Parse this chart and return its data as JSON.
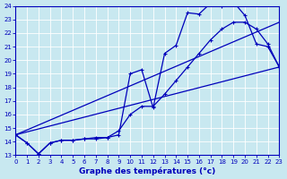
{
  "xlabel": "Graphe des températures (°c)",
  "bg_color": "#c8e8f0",
  "grid_color": "#aaccdd",
  "line_color": "#0000bb",
  "xmin": 0,
  "xmax": 23,
  "ymin": 13,
  "ymax": 24,
  "curve1_x": [
    0,
    1,
    2,
    3,
    4,
    5,
    6,
    7,
    8,
    9,
    10,
    11,
    12,
    13,
    14,
    15,
    16,
    17,
    18,
    19,
    20,
    21,
    22,
    23
  ],
  "curve1_y": [
    14.5,
    13.9,
    13.1,
    13.9,
    14.1,
    14.1,
    14.2,
    14.2,
    14.3,
    14.5,
    19.0,
    19.3,
    16.5,
    20.5,
    21.1,
    23.5,
    23.4,
    24.2,
    24.0,
    24.3,
    23.3,
    21.2,
    21.0,
    19.5
  ],
  "curve2_x": [
    0,
    1,
    2,
    3,
    4,
    5,
    6,
    7,
    8,
    9,
    10,
    11,
    12,
    13,
    14,
    15,
    16,
    17,
    18,
    19,
    20,
    21,
    22,
    23
  ],
  "curve2_y": [
    14.5,
    13.9,
    13.1,
    13.9,
    14.1,
    14.1,
    14.2,
    14.3,
    14.3,
    14.8,
    16.0,
    16.6,
    16.6,
    17.5,
    18.5,
    19.5,
    20.5,
    21.5,
    22.3,
    22.8,
    22.8,
    22.3,
    21.2,
    19.5
  ],
  "line1_x": [
    0,
    23
  ],
  "line1_y": [
    14.5,
    22.8
  ],
  "line2_x": [
    0,
    23
  ],
  "line2_y": [
    14.5,
    19.5
  ]
}
